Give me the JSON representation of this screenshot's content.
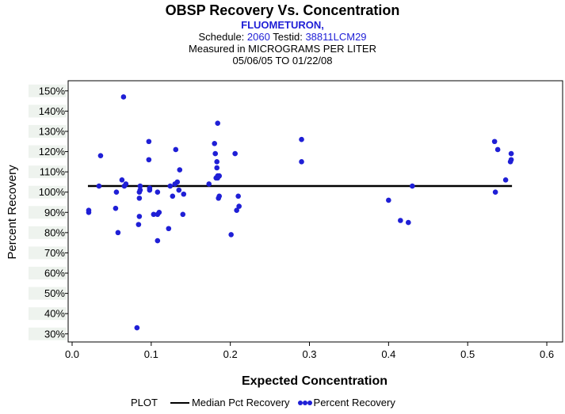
{
  "header": {
    "title": "OBSP Recovery Vs. Concentration",
    "compound": "FLUOMETURON,",
    "schedule_label": "Schedule:",
    "schedule_value": "2060",
    "testid_label": "Testid:",
    "testid_value": "38811LCM29",
    "measured": "Measured in  MICROGRAMS PER LITER",
    "date_range": "05/06/05 TO 01/22/08"
  },
  "legend": {
    "plot_label": "PLOT",
    "median_label": "Median Pct Recovery",
    "recovery_label": "Percent Recovery"
  },
  "colors": {
    "points": "#1f1fd6",
    "median": "#000000",
    "ytick_band": "#eef3ee"
  },
  "chart_data": {
    "type": "scatter",
    "title": "OBSP Recovery Vs. Concentration",
    "xlabel": "Expected Concentration",
    "ylabel": "Percent Recovery",
    "xlim": [
      -0.005,
      0.62
    ],
    "ylim": [
      26,
      155
    ],
    "x_ticks": [
      0.0,
      0.1,
      0.2,
      0.3,
      0.4,
      0.5,
      0.6
    ],
    "x_tick_labels": [
      "0.0",
      "0.1",
      "0.2",
      "0.3",
      "0.4",
      "0.5",
      "0.6"
    ],
    "y_ticks": [
      30,
      40,
      50,
      60,
      70,
      80,
      90,
      100,
      110,
      120,
      130,
      140,
      150
    ],
    "y_tick_labels": [
      "30%",
      "40%",
      "50%",
      "60%",
      "70%",
      "80%",
      "90%",
      "100%",
      "110%",
      "120%",
      "130%",
      "140%",
      "150%"
    ],
    "median": {
      "name": "Median Pct Recovery",
      "x": [
        0.02,
        0.556
      ],
      "y": [
        103,
        103
      ]
    },
    "series": [
      {
        "name": "Percent Recovery",
        "x": [
          0.021,
          0.021,
          0.034,
          0.036,
          0.055,
          0.056,
          0.058,
          0.063,
          0.065,
          0.066,
          0.068,
          0.082,
          0.084,
          0.085,
          0.085,
          0.085,
          0.086,
          0.086,
          0.097,
          0.097,
          0.098,
          0.098,
          0.103,
          0.108,
          0.108,
          0.108,
          0.11,
          0.122,
          0.124,
          0.127,
          0.13,
          0.131,
          0.133,
          0.135,
          0.136,
          0.14,
          0.141,
          0.173,
          0.18,
          0.181,
          0.182,
          0.183,
          0.183,
          0.184,
          0.184,
          0.184,
          0.185,
          0.186,
          0.186,
          0.201,
          0.206,
          0.208,
          0.21,
          0.211,
          0.29,
          0.29,
          0.4,
          0.415,
          0.425,
          0.43,
          0.534,
          0.535,
          0.538,
          0.548,
          0.554,
          0.555,
          0.555
        ],
        "y": [
          90,
          91,
          103,
          118,
          92,
          100,
          80,
          106,
          147,
          103,
          104,
          33,
          84,
          88,
          97,
          100,
          101,
          103,
          116,
          125,
          102,
          101,
          89,
          76,
          89,
          100,
          90,
          82,
          103,
          98,
          104,
          121,
          105,
          101,
          111,
          89,
          99,
          104,
          124,
          119,
          107,
          112,
          115,
          107,
          108,
          134,
          97,
          98,
          108,
          79,
          119,
          91,
          98,
          93,
          126,
          115,
          96,
          86,
          85,
          103,
          125,
          100,
          121,
          106,
          115,
          116,
          119
        ]
      }
    ]
  }
}
